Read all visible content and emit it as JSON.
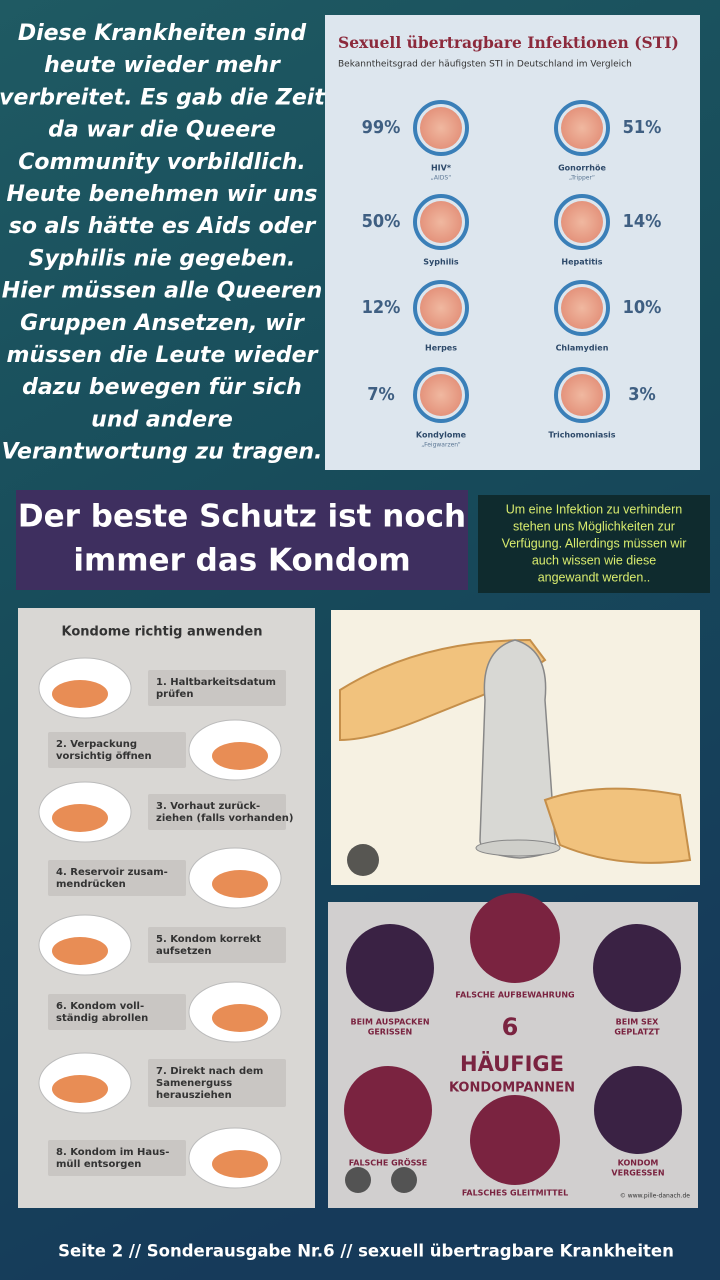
{
  "intro": {
    "lines": [
      "Diese Krankheiten  sind",
      "heute wieder mehr",
      "verbreitet. Es gab die Zeit",
      "da war die Queere",
      "Community vorbildlich.",
      "Heute benehmen wir uns",
      "so als hätte es Aids oder",
      "Syphilis nie gegeben.",
      "Hier müssen alle Queeren",
      "Gruppen Ansetzen, wir",
      "müssen die Leute wieder",
      "dazu bewegen für sich",
      "und andere",
      "Verantwortung zu tragen."
    ]
  },
  "sti": {
    "title": "Sexuell übertragbare Infektionen (STI)",
    "subtitle": "Bekanntheitsgrad der häufigsten STI in Deutschland im Vergleich",
    "items": [
      {
        "percent": "99%",
        "name": "HIV*",
        "note": "„AIDS“"
      },
      {
        "percent": "51%",
        "name": "Gonorrhöe",
        "note": "„Tripper“"
      },
      {
        "percent": "50%",
        "name": "Syphilis"
      },
      {
        "percent": "14%",
        "name": "Hepatitis"
      },
      {
        "percent": "12%",
        "name": "Herpes"
      },
      {
        "percent": "10%",
        "name": "Chlamydien"
      },
      {
        "percent": "7%",
        "name": "Kondylome",
        "note": "„Feigwarzen“"
      },
      {
        "percent": "3%",
        "name": "Trichomoniasis"
      }
    ]
  },
  "headline": {
    "lines": [
      "Der beste Schutz ist noch",
      "immer das Kondom"
    ]
  },
  "note": {
    "lines": [
      "Um eine Infektion zu verhindern",
      "stehen uns Möglichkeiten zur",
      "Verfügung. Allerdings müssen wir",
      "auch wissen wie diese",
      "angewandt werden.."
    ]
  },
  "kondome": {
    "title": "Kondome richtig anwenden",
    "steps": [
      [
        "1. Haltbarkeitsdatum",
        "prüfen"
      ],
      [
        "2. Verpackung",
        "vorsichtig öffnen"
      ],
      [
        "3. Vorhaut zurück-",
        "ziehen (falls vorhanden)"
      ],
      [
        "4. Reservoir zusam-",
        "mendrücken"
      ],
      [
        "5. Kondom korrekt",
        "aufsetzen"
      ],
      [
        "6. Kondom voll-",
        "ständig abrollen"
      ],
      [
        "7. Direkt nach dem",
        "Samenerguss",
        "herausziehen"
      ],
      [
        "8. Kondom im Haus-",
        "müll entsorgen"
      ]
    ]
  },
  "pannen": {
    "number": "6",
    "title": [
      "HÄUFIGE",
      "KONDOMPANNEN"
    ],
    "items": [
      [
        "BEIM AUSPACKEN",
        "GERISSEN"
      ],
      [
        "FALSCHE AUFBEWAHRUNG"
      ],
      [
        "BEIM SEX",
        "GEPLATZT"
      ],
      [
        "FALSCHE GRÖSSE"
      ],
      [
        "FALSCHES GLEITMITTEL"
      ],
      [
        "KONDOM",
        "VERGESSEN"
      ]
    ],
    "source": "© www.pille-danach.de"
  },
  "footer": "Seite 2 // Sonderausgabe Nr.6 // sexuell übertragbare Krankheiten"
}
